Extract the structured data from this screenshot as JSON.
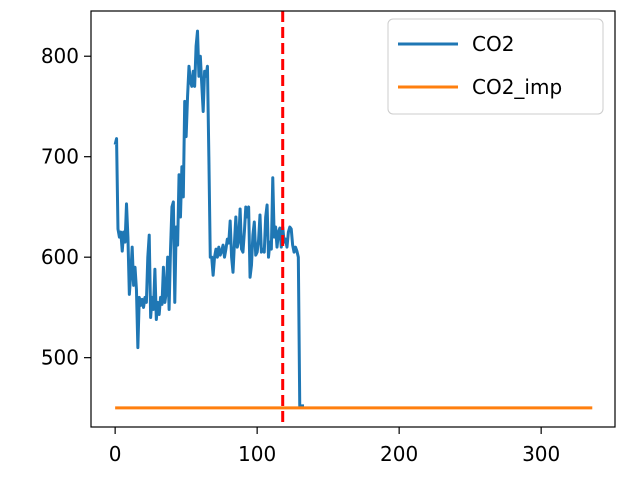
{
  "chart_data": {
    "type": "line",
    "title": "",
    "xlabel": "",
    "ylabel": "",
    "xlim": [
      -17,
      352
    ],
    "ylim": [
      431,
      845
    ],
    "xticks": [
      0,
      100,
      200,
      300
    ],
    "yticks": [
      500,
      600,
      700,
      800
    ],
    "xtick_labels": [
      "0",
      "100",
      "200",
      "300"
    ],
    "ytick_labels": [
      "500",
      "600",
      "700",
      "800"
    ],
    "grid": false,
    "legend": {
      "placement": "top-right",
      "entries": [
        "CO2",
        "CO2_imp"
      ]
    },
    "vline": {
      "x": 118,
      "color": "#ff0000",
      "style": "dashed"
    },
    "series": [
      {
        "name": "CO2",
        "color": "#1f77b4",
        "x": [
          0,
          1,
          2,
          3,
          4,
          5,
          6,
          7,
          8,
          9,
          10,
          11,
          12,
          13,
          14,
          15,
          16,
          17,
          18,
          19,
          20,
          21,
          22,
          23,
          24,
          25,
          26,
          27,
          28,
          29,
          30,
          31,
          32,
          33,
          34,
          35,
          36,
          37,
          38,
          39,
          40,
          41,
          42,
          43,
          44,
          45,
          46,
          47,
          48,
          49,
          50,
          51,
          52,
          53,
          54,
          55,
          56,
          57,
          58,
          59,
          60,
          61,
          62,
          63,
          64,
          65,
          66,
          67,
          68,
          69,
          70,
          71,
          72,
          73,
          74,
          75,
          76,
          77,
          78,
          79,
          80,
          81,
          82,
          83,
          84,
          85,
          86,
          87,
          88,
          89,
          90,
          91,
          92,
          93,
          94,
          95,
          96,
          97,
          98,
          99,
          100,
          101,
          102,
          103,
          104,
          105,
          106,
          107,
          108,
          109,
          110,
          111,
          112,
          113,
          114,
          115,
          116,
          117,
          118,
          119,
          120,
          121,
          122,
          123,
          124,
          125,
          126,
          127,
          128,
          129,
          130,
          131,
          132,
          133
        ],
        "values": [
          712,
          718,
          628,
          620,
          625,
          606,
          625,
          615,
          653,
          620,
          563,
          583,
          610,
          572,
          590,
          568,
          510,
          560,
          552,
          558,
          550,
          560,
          555,
          600,
          622,
          540,
          560,
          548,
          588,
          538,
          555,
          543,
          560,
          553,
          590,
          555,
          565,
          600,
          548,
          608,
          650,
          655,
          555,
          630,
          612,
          682,
          640,
          690,
          660,
          755,
          720,
          760,
          790,
          775,
          770,
          785,
          770,
          810,
          825,
          780,
          800,
          772,
          745,
          785,
          780,
          790,
          700,
          600,
          600,
          582,
          600,
          608,
          600,
          610,
          602,
          606,
          612,
          600,
          608,
          618,
          614,
          636,
          600,
          585,
          614,
          640,
          610,
          616,
          648,
          608,
          605,
          625,
          650,
          640,
          650,
          580,
          592,
          622,
          635,
          602,
          605,
          617,
          642,
          605,
          608,
          605,
          640,
          652,
          600,
          615,
          608,
          679,
          620,
          630,
          610,
          625,
          629,
          610,
          630,
          615,
          618,
          610,
          625,
          630,
          628,
          612,
          605,
          610,
          606,
          600,
          452,
          452,
          452,
          452
        ]
      },
      {
        "name": "CO2_imp",
        "color": "#ff7f0e",
        "x": [
          0,
          336
        ],
        "values": [
          450,
          450
        ]
      }
    ]
  }
}
